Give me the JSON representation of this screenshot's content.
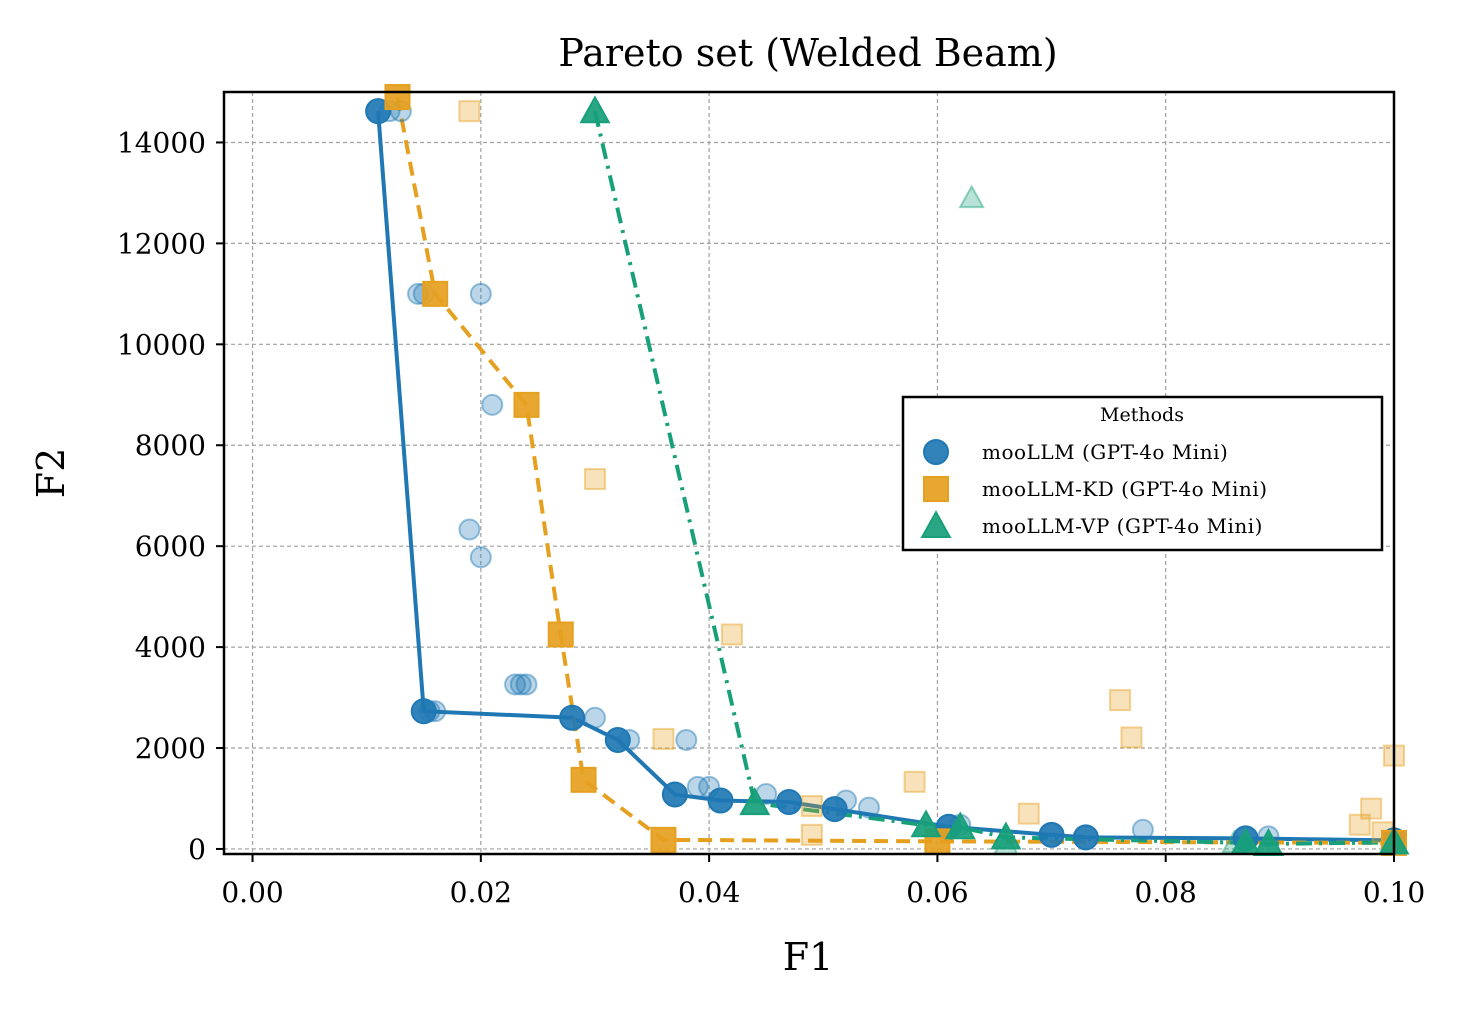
{
  "chart_data": {
    "type": "scatter",
    "title": "Pareto set (Welded Beam)",
    "xlabel": "F1",
    "ylabel": "F2",
    "xlim": [
      -0.0025,
      0.1
    ],
    "ylim": [
      -100,
      15000
    ],
    "xticks": [
      "0.00",
      "0.02",
      "0.04",
      "0.06",
      "0.08",
      "0.10"
    ],
    "yticks": [
      "0",
      "2000",
      "4000",
      "6000",
      "8000",
      "10000",
      "12000",
      "14000"
    ],
    "grid": true,
    "legend": {
      "title": "Methods",
      "placement": "center-right"
    },
    "series": [
      {
        "name": "mooLLM (GPT-4o Mini)",
        "marker": "circle",
        "line_style": "solid",
        "color": "#1f78b4",
        "pareto_front": [
          [
            0.011,
            14620
          ],
          [
            0.015,
            2730
          ],
          [
            0.028,
            2600
          ],
          [
            0.032,
            2160
          ],
          [
            0.037,
            1080
          ],
          [
            0.041,
            960
          ],
          [
            0.047,
            930
          ],
          [
            0.051,
            790
          ],
          [
            0.061,
            440
          ],
          [
            0.07,
            280
          ],
          [
            0.073,
            230
          ],
          [
            0.087,
            210
          ],
          [
            0.1,
            170
          ]
        ],
        "other_points": [
          [
            0.012,
            14620
          ],
          [
            0.013,
            14620
          ],
          [
            0.0145,
            11000
          ],
          [
            0.015,
            11000
          ],
          [
            0.02,
            11000
          ],
          [
            0.021,
            8800
          ],
          [
            0.019,
            6330
          ],
          [
            0.02,
            5780
          ],
          [
            0.023,
            3260
          ],
          [
            0.0235,
            3260
          ],
          [
            0.024,
            3260
          ],
          [
            0.0155,
            2730
          ],
          [
            0.016,
            2730
          ],
          [
            0.03,
            2600
          ],
          [
            0.033,
            2160
          ],
          [
            0.038,
            2160
          ],
          [
            0.039,
            1230
          ],
          [
            0.04,
            1230
          ],
          [
            0.045,
            1090
          ],
          [
            0.052,
            960
          ],
          [
            0.054,
            820
          ],
          [
            0.062,
            480
          ],
          [
            0.078,
            380
          ],
          [
            0.089,
            250
          ],
          [
            0.1,
            200
          ]
        ]
      },
      {
        "name": "mooLLM-KD (GPT-4o Mini)",
        "marker": "square",
        "line_style": "dashed",
        "color": "#e6a020",
        "pareto_front": [
          [
            0.0127,
            14900
          ],
          [
            0.016,
            11000
          ],
          [
            0.024,
            8800
          ],
          [
            0.027,
            4250
          ],
          [
            0.029,
            1370
          ],
          [
            0.036,
            180
          ],
          [
            0.06,
            150
          ],
          [
            0.1,
            120
          ]
        ],
        "other_points": [
          [
            0.019,
            14620
          ],
          [
            0.03,
            7330
          ],
          [
            0.042,
            4250
          ],
          [
            0.036,
            2180
          ],
          [
            0.058,
            1330
          ],
          [
            0.076,
            2950
          ],
          [
            0.077,
            2210
          ],
          [
            0.1,
            1850
          ],
          [
            0.049,
            850
          ],
          [
            0.049,
            280
          ],
          [
            0.068,
            700
          ],
          [
            0.098,
            800
          ],
          [
            0.097,
            480
          ],
          [
            0.099,
            330
          ]
        ]
      },
      {
        "name": "mooLLM-VP (GPT-4o Mini)",
        "marker": "triangle",
        "line_style": "dashdot",
        "color": "#17a07a",
        "pareto_front": [
          [
            0.03,
            14620
          ],
          [
            0.044,
            910
          ],
          [
            0.059,
            470
          ],
          [
            0.062,
            430
          ],
          [
            0.066,
            230
          ],
          [
            0.087,
            120
          ],
          [
            0.089,
            100
          ],
          [
            0.1,
            130
          ]
        ],
        "other_points": [
          [
            0.063,
            12900
          ],
          [
            0.066,
            80
          ],
          [
            0.086,
            120
          ]
        ]
      }
    ]
  }
}
